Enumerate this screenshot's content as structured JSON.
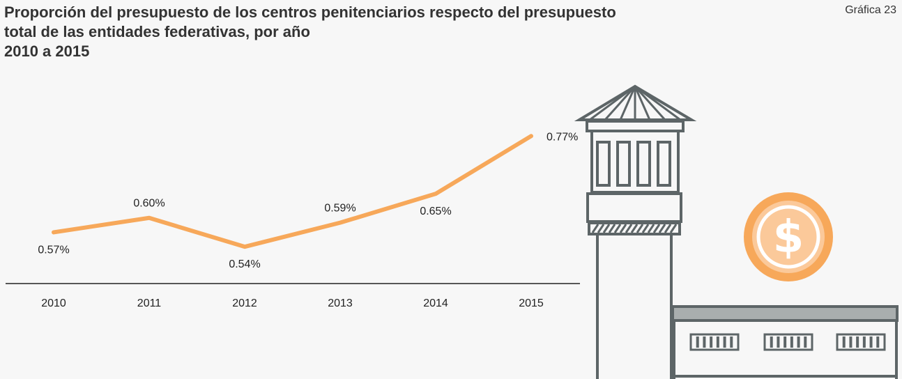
{
  "header": {
    "title_lines": [
      "Proporción del presupuesto de los centros penitenciarios respecto del presupuesto",
      "total de las entidades federativas, por año",
      "2010 a 2015"
    ],
    "chart_number": "Gráfica 23"
  },
  "chart_data": {
    "type": "line",
    "title": "Proporción del presupuesto de los centros penitenciarios respecto del presupuesto total de las entidades federativas, por año 2010 a 2015",
    "categories": [
      "2010",
      "2011",
      "2012",
      "2013",
      "2014",
      "2015"
    ],
    "series": [
      {
        "values": [
          0.57,
          0.6,
          0.54,
          0.59,
          0.65,
          0.77
        ],
        "labels": [
          "0.57%",
          "0.60%",
          "0.54%",
          "0.59%",
          "0.65%",
          "0.77%"
        ],
        "color": "#f7a85a"
      }
    ],
    "ylim": [
      0.3,
      0.85
    ],
    "xlabel": "",
    "ylabel": "",
    "grid": false,
    "legend": "none"
  },
  "illustration": {
    "subject": "prison-watchtower-and-building",
    "icon": "dollar-coin-icon",
    "colors": {
      "stroke": "#5d6567",
      "roof_fill": "#a9aeae",
      "coin_outer": "#f7a85a",
      "coin_inner": "#fbc99a",
      "coin_symbol": "#ffffff"
    }
  }
}
